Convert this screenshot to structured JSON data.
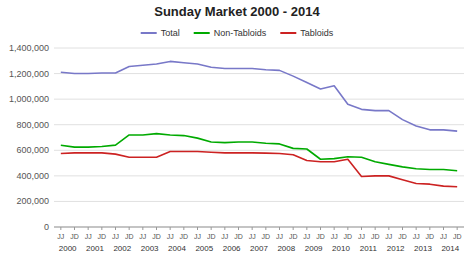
{
  "chart_data": {
    "type": "line",
    "title": "Sunday Market 2000 - 2014",
    "categories": [
      "JJ",
      "JD",
      "JJ",
      "JD",
      "JJ",
      "JD",
      "JJ",
      "JD",
      "JJ",
      "JD",
      "JJ",
      "JD",
      "JJ",
      "JD",
      "JJ",
      "JD",
      "JJ",
      "JD",
      "JJ",
      "JD",
      "JJ",
      "JD",
      "JJ",
      "JD",
      "JJ",
      "JD",
      "JJ",
      "JD",
      "JJ",
      "JD"
    ],
    "category_groups": [
      2000,
      2001,
      2002,
      2003,
      2004,
      2005,
      2006,
      2007,
      2008,
      2009,
      2010,
      2011,
      2012,
      2013,
      2014
    ],
    "series": [
      {
        "name": "Total",
        "color": "#7878c8",
        "values": [
          1210000,
          1200000,
          1200000,
          1205000,
          1205000,
          1255000,
          1265000,
          1275000,
          1295000,
          1285000,
          1275000,
          1250000,
          1240000,
          1240000,
          1240000,
          1230000,
          1225000,
          1180000,
          1130000,
          1080000,
          1105000,
          960000,
          920000,
          910000,
          910000,
          840000,
          790000,
          760000,
          760000,
          750000
        ]
      },
      {
        "name": "Non-Tabloids",
        "color": "#00aa00",
        "values": [
          640000,
          625000,
          625000,
          630000,
          640000,
          720000,
          720000,
          730000,
          720000,
          715000,
          695000,
          665000,
          660000,
          665000,
          665000,
          655000,
          650000,
          615000,
          610000,
          530000,
          535000,
          550000,
          545000,
          510000,
          490000,
          470000,
          455000,
          450000,
          450000,
          440000
        ]
      },
      {
        "name": "Tabloids",
        "color": "#cc2222",
        "values": [
          575000,
          580000,
          580000,
          580000,
          570000,
          545000,
          545000,
          545000,
          590000,
          590000,
          590000,
          585000,
          580000,
          580000,
          580000,
          578000,
          575000,
          565000,
          520000,
          510000,
          510000,
          530000,
          395000,
          400000,
          400000,
          370000,
          340000,
          335000,
          320000,
          315000
        ]
      }
    ],
    "ylim": [
      0,
      1400000
    ],
    "yticks": [
      0,
      {
        "value": 200000,
        "label": "200,000"
      },
      {
        "value": 400000,
        "label": "400,000"
      },
      {
        "value": 600000,
        "label": "600,000"
      },
      {
        "value": 800000,
        "label": "800,000"
      },
      {
        "value": 1000000,
        "label": "1,000,000"
      },
      {
        "value": 1200000,
        "label": "1,200,000"
      },
      {
        "value": 1400000,
        "label": "1,400,000"
      }
    ],
    "grid": true,
    "legend": "top"
  }
}
